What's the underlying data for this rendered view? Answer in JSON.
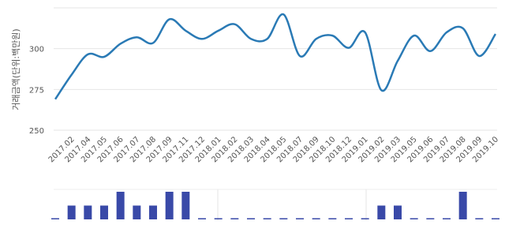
{
  "chart_data": [
    {
      "type": "line",
      "y_label": "거래금액(단위:백만원)",
      "categories": [
        null,
        "2017.02",
        "2017.04",
        "2017.05",
        "2017.06",
        "2017.07",
        "2017.08",
        "2017.09",
        "2017.11",
        "2017.12",
        "2018.01",
        "2018.02",
        "2018.03",
        "2018.04",
        "2018.05",
        "2018.07",
        "2018.09",
        "2018.10",
        "2018.12",
        "2019.01",
        "2019.02",
        "2019.03",
        "2019.05",
        "2019.06",
        "2019.07",
        "2019.08",
        "2019.09",
        "2019.10"
      ],
      "series": [
        {
          "color": "#2a7ab5",
          "values": [
            269,
            284,
            296.5,
            295,
            303,
            307,
            303.5,
            318,
            311,
            306,
            311,
            315,
            306,
            306,
            321,
            295.5,
            306,
            308,
            300.5,
            310,
            274.5,
            292.5,
            308,
            298.5,
            310,
            312.5,
            295.5,
            309
          ]
        }
      ],
      "ylim": [
        250,
        325
      ],
      "yticks": [
        250,
        275,
        300
      ],
      "grid": true
    },
    {
      "type": "bar",
      "color": "#3949a8",
      "values": [
        0,
        1,
        1,
        1,
        2,
        1,
        1,
        2,
        2,
        0,
        0,
        0,
        0,
        0,
        0,
        0,
        0,
        0,
        0,
        0,
        1,
        1,
        0,
        0,
        0,
        2,
        0,
        0
      ],
      "ylim": [
        0,
        2
      ]
    }
  ]
}
